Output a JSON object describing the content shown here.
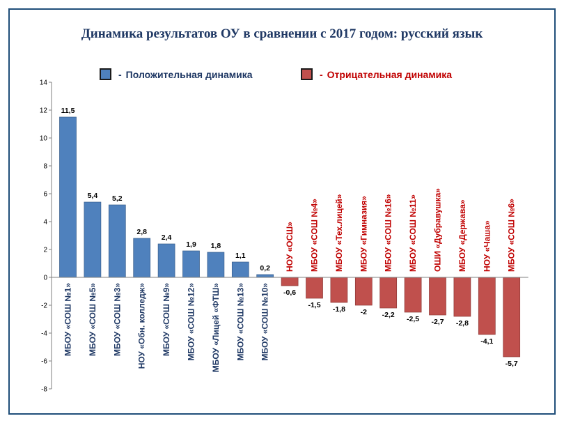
{
  "chart_data": {
    "type": "bar",
    "title": "Динамика результатов ОУ в  сравнении с 2017 годом: русский язык",
    "ylim": [
      -8,
      14
    ],
    "yticks": [
      14,
      12,
      10,
      8,
      6,
      4,
      2,
      0,
      -2,
      -4,
      -6,
      -8
    ],
    "grid": false,
    "legend": [
      {
        "dash": "-",
        "label": "Положительная динамика",
        "color": "#4f81bd",
        "text_color": "#1f3864"
      },
      {
        "dash": "-",
        "label": "Отрицательная динамика",
        "color": "#c0504d",
        "text_color": "#c00000"
      }
    ],
    "categories": [
      "МБОУ «СОШ №1»",
      "МБОУ «СОШ №5»",
      "МБОУ «СОШ №3»",
      "НОУ «Обн. колледж»",
      "МБОУ «СОШ №9»",
      "МБОУ «СОШ №12»",
      "МБОУ «Лицей «ФТШ»",
      "МБОУ «СОШ №13»",
      "МБОУ «СОШ №10»",
      "НОУ «ОСШ»",
      "МБОУ «СОШ №4»",
      "МБОУ «Тех.лицей»",
      "МБОУ «Гимназия»",
      "МБОУ «СОШ №16»",
      "МБОУ «СОШ №11»",
      "ОШИ «Дубравушка»",
      "МБОУ «Держава»",
      "НОУ «Чаша»",
      "МБОУ «СОШ №6»"
    ],
    "values": [
      11.5,
      5.4,
      5.2,
      2.8,
      2.4,
      1.9,
      1.8,
      1.1,
      0.2,
      -0.6,
      -1.5,
      -1.8,
      -2,
      -2.2,
      -2.5,
      -2.7,
      -2.8,
      -4.1,
      -5.7
    ],
    "value_labels": [
      "11,5",
      "5,4",
      "5,2",
      "2,8",
      "2,4",
      "1,9",
      "1,8",
      "1,1",
      "0,2",
      "-0,6",
      "-1,5",
      "-1,8",
      "-2",
      "-2,2",
      "-2,5",
      "-2,7",
      "-2,8",
      "-4,1",
      "-5,7"
    ],
    "tick_labels": [
      "14",
      "12",
      "10",
      "8",
      "6",
      "4",
      "2",
      "0",
      "-2",
      "-4",
      "-6",
      "-8"
    ],
    "colors": {
      "positive": "#4f81bd",
      "negative": "#c0504d",
      "positive_text": "#1f3864",
      "negative_text": "#c00000",
      "axis": "#7f7f7f"
    }
  }
}
